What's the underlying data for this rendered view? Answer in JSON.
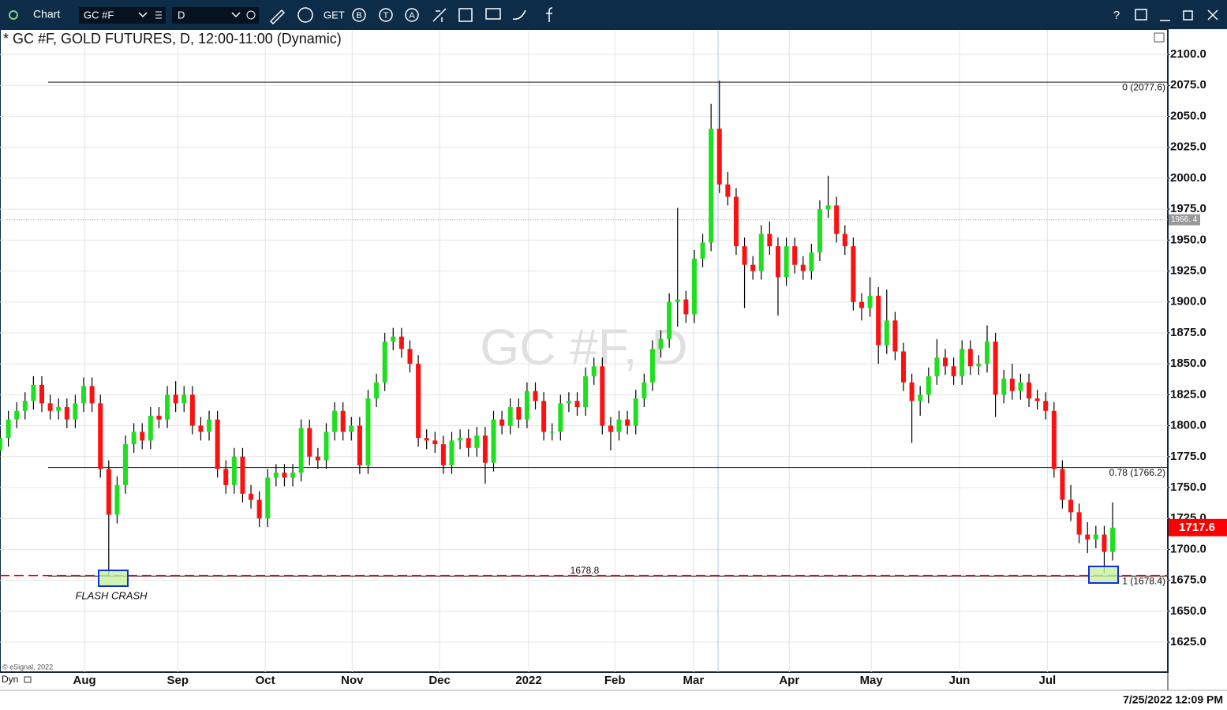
{
  "toolbar": {
    "app": "Chart",
    "symbol": "GC #F",
    "interval": "D",
    "get": "GET",
    "b": "B",
    "t": "T",
    "a": "A",
    "help": "?"
  },
  "chart_data": {
    "type": "candlestick",
    "title": "* GC #F, GOLD FUTURES, D, 12:00-11:00 (Dynamic)",
    "watermark": "GC #F, D",
    "x": [
      0,
      2,
      4,
      6,
      8,
      10,
      12,
      14,
      16,
      18,
      20,
      22,
      24,
      26,
      28,
      30,
      32,
      34,
      36,
      38,
      40,
      42,
      44,
      46,
      48,
      50,
      52,
      54,
      56,
      58,
      60,
      62,
      64,
      66,
      68,
      70,
      72,
      74,
      76,
      78,
      80,
      82,
      84,
      86,
      88,
      90,
      92,
      94,
      96,
      98,
      100,
      102,
      104,
      106,
      108,
      110,
      112,
      114,
      116,
      118,
      120,
      122,
      124,
      126,
      128,
      130,
      132,
      134,
      136,
      138,
      140,
      142,
      144,
      146,
      148,
      150,
      152,
      154,
      156,
      158,
      160,
      162,
      164,
      166,
      168,
      170,
      172,
      174,
      176,
      178,
      180,
      182,
      184,
      186,
      188,
      190,
      192,
      194,
      196,
      198,
      200,
      202,
      204,
      206,
      208,
      210,
      212,
      214,
      216,
      218,
      220,
      222,
      224,
      226,
      228,
      230,
      232,
      234,
      236,
      238,
      240,
      242,
      244,
      246,
      248,
      250,
      252,
      254,
      256,
      258,
      260,
      262,
      264,
      266
    ],
    "open": [
      1780,
      1790,
      1805,
      1812,
      1820,
      1833,
      1818,
      1812,
      1815,
      1805,
      1818,
      1832,
      1818,
      1765,
      1728,
      1752,
      1785,
      1795,
      1788,
      1808,
      1805,
      1825,
      1818,
      1825,
      1800,
      1795,
      1805,
      1765,
      1752,
      1775,
      1745,
      1740,
      1725,
      1758,
      1762,
      1758,
      1762,
      1798,
      1775,
      1772,
      1795,
      1812,
      1795,
      1800,
      1768,
      1822,
      1835,
      1868,
      1872,
      1862,
      1850,
      1790,
      1788,
      1785,
      1768,
      1788,
      1790,
      1782,
      1792,
      1770,
      1805,
      1800,
      1815,
      1805,
      1828,
      1820,
      1795,
      1795,
      1818,
      1820,
      1815,
      1840,
      1848,
      1800,
      1795,
      1805,
      1800,
      1822,
      1835,
      1862,
      1870,
      1900,
      1902,
      1890,
      1935,
      1948,
      2040,
      1995,
      1985,
      1945,
      1930,
      1925,
      1955,
      1945,
      1920,
      1945,
      1930,
      1925,
      1940,
      1975,
      1978,
      1955,
      1945,
      1900,
      1895,
      1905,
      1865,
      1885,
      1860,
      1835,
      1820,
      1825,
      1840,
      1855,
      1848,
      1840,
      1862,
      1848,
      1850,
      1868,
      1825,
      1838,
      1828,
      1835,
      1822,
      1820,
      1812,
      1765,
      1740,
      1730,
      1712,
      1708,
      1712,
      1698
    ],
    "high": [
      1797,
      1812,
      1819,
      1827,
      1840,
      1840,
      1825,
      1822,
      1822,
      1825,
      1839,
      1839,
      1825,
      1772,
      1759,
      1792,
      1802,
      1802,
      1815,
      1815,
      1832,
      1836,
      1832,
      1832,
      1807,
      1812,
      1812,
      1772,
      1782,
      1782,
      1752,
      1747,
      1765,
      1769,
      1769,
      1769,
      1805,
      1805,
      1782,
      1802,
      1819,
      1819,
      1807,
      1807,
      1829,
      1842,
      1875,
      1879,
      1879,
      1869,
      1857,
      1797,
      1795,
      1792,
      1795,
      1797,
      1797,
      1799,
      1799,
      1812,
      1812,
      1822,
      1822,
      1835,
      1835,
      1827,
      1802,
      1825,
      1827,
      1827,
      1847,
      1855,
      1855,
      1807,
      1812,
      1812,
      1829,
      1842,
      1869,
      1877,
      1907,
      1976,
      1909,
      1942,
      1955,
      2060,
      2078.8,
      2005,
      1992,
      1952,
      1937,
      1962,
      1965,
      1952,
      1952,
      1952,
      1937,
      1947,
      1982,
      2002,
      1985,
      1962,
      1952,
      1907,
      1920,
      1912,
      1910,
      1892,
      1867,
      1842,
      1832,
      1847,
      1870,
      1862,
      1855,
      1869,
      1869,
      1857,
      1881,
      1875,
      1845,
      1850,
      1842,
      1842,
      1829,
      1827,
      1819,
      1772,
      1752,
      1737,
      1722,
      1719,
      1719,
      1738
    ],
    "low": [
      1773,
      1783,
      1798,
      1805,
      1813,
      1811,
      1805,
      1805,
      1798,
      1798,
      1811,
      1811,
      1758,
      1678.8,
      1721,
      1745,
      1778,
      1781,
      1781,
      1798,
      1798,
      1811,
      1811,
      1793,
      1788,
      1788,
      1758,
      1745,
      1745,
      1738,
      1733,
      1718,
      1718,
      1751,
      1751,
      1751,
      1755,
      1768,
      1765,
      1765,
      1788,
      1788,
      1788,
      1761,
      1761,
      1815,
      1828,
      1861,
      1855,
      1843,
      1783,
      1781,
      1778,
      1761,
      1761,
      1781,
      1775,
      1775,
      1753,
      1763,
      1793,
      1793,
      1798,
      1798,
      1813,
      1788,
      1788,
      1788,
      1811,
      1808,
      1808,
      1833,
      1793,
      1780,
      1788,
      1793,
      1793,
      1815,
      1828,
      1855,
      1863,
      1880,
      1883,
      1883,
      1928,
      1941,
      1988,
      1978,
      1938,
      1895,
      1918,
      1918,
      1938,
      1889,
      1913,
      1923,
      1918,
      1918,
      1933,
      1968,
      1948,
      1938,
      1893,
      1885,
      1888,
      1850,
      1858,
      1853,
      1828,
      1786,
      1808,
      1818,
      1833,
      1841,
      1833,
      1833,
      1841,
      1841,
      1843,
      1807,
      1818,
      1821,
      1821,
      1815,
      1813,
      1805,
      1758,
      1733,
      1723,
      1705,
      1697,
      1701,
      1680.8,
      1691
    ],
    "close": [
      1790,
      1805,
      1812,
      1820,
      1833,
      1818,
      1812,
      1815,
      1805,
      1818,
      1832,
      1818,
      1765,
      1728,
      1752,
      1785,
      1795,
      1788,
      1808,
      1805,
      1825,
      1818,
      1825,
      1800,
      1795,
      1805,
      1765,
      1752,
      1775,
      1745,
      1740,
      1725,
      1758,
      1762,
      1758,
      1762,
      1798,
      1775,
      1772,
      1795,
      1812,
      1795,
      1800,
      1768,
      1822,
      1835,
      1868,
      1872,
      1862,
      1850,
      1790,
      1788,
      1785,
      1768,
      1788,
      1790,
      1782,
      1792,
      1770,
      1805,
      1800,
      1815,
      1805,
      1828,
      1820,
      1795,
      1795,
      1818,
      1820,
      1815,
      1840,
      1848,
      1800,
      1795,
      1805,
      1800,
      1822,
      1835,
      1862,
      1870,
      1900,
      1902,
      1890,
      1935,
      1948,
      2040,
      1995,
      1985,
      1945,
      1930,
      1925,
      1955,
      1945,
      1920,
      1945,
      1930,
      1925,
      1940,
      1975,
      1978,
      1955,
      1945,
      1900,
      1895,
      1905,
      1865,
      1885,
      1860,
      1835,
      1820,
      1825,
      1840,
      1855,
      1848,
      1840,
      1862,
      1848,
      1850,
      1868,
      1825,
      1838,
      1828,
      1835,
      1822,
      1820,
      1812,
      1765,
      1740,
      1730,
      1712,
      1708,
      1712,
      1698,
      1717.6
    ],
    "colors": {
      "up": "#1fe01f",
      "down": "#ff1010",
      "wick": "#000000"
    },
    "xlim": [
      0,
      279.2
    ],
    "xticks": [
      {
        "value": 20.2,
        "label": "Aug"
      },
      {
        "value": 42.5,
        "label": "Sep"
      },
      {
        "value": 63.4,
        "label": "Oct"
      },
      {
        "value": 84.2,
        "label": "Nov"
      },
      {
        "value": 105.1,
        "label": "Dec"
      },
      {
        "value": 126.4,
        "label": "2022"
      },
      {
        "value": 147,
        "label": "Feb"
      },
      {
        "value": 165.8,
        "label": "Mar"
      },
      {
        "value": 188.7,
        "label": "Apr"
      },
      {
        "value": 208.3,
        "label": "May"
      },
      {
        "value": 229.4,
        "label": "Jun"
      },
      {
        "value": 250.4,
        "label": "Jul"
      }
    ],
    "ylim": [
      1600.8,
      2119.8
    ],
    "yticks": [
      {
        "value": 1625,
        "label": "1625.0"
      },
      {
        "value": 1650,
        "label": "1650.0"
      },
      {
        "value": 1675,
        "label": "1675.0"
      },
      {
        "value": 1700,
        "label": "1700.0"
      },
      {
        "value": 1725,
        "label": "1725.0"
      },
      {
        "value": 1750,
        "label": "1750.0"
      },
      {
        "value": 1775,
        "label": "1775.0"
      },
      {
        "value": 1800,
        "label": "1800.0"
      },
      {
        "value": 1825,
        "label": "1825.0"
      },
      {
        "value": 1850,
        "label": "1850.0"
      },
      {
        "value": 1875,
        "label": "1875.0"
      },
      {
        "value": 1900,
        "label": "1900.0"
      },
      {
        "value": 1925,
        "label": "1925.0"
      },
      {
        "value": 1950,
        "label": "1950.0"
      },
      {
        "value": 1975,
        "label": "1975.0"
      },
      {
        "value": 2000,
        "label": "2000.0"
      },
      {
        "value": 2025,
        "label": "2025.0"
      },
      {
        "value": 2050,
        "label": "2050.0"
      },
      {
        "value": 2075,
        "label": "2075.0"
      },
      {
        "value": 2100,
        "label": "2100.0"
      }
    ],
    "grid": true,
    "fib_levels": [
      {
        "value": 2077.6,
        "label": "0 (2077.6)"
      },
      {
        "value": 1766.2,
        "label": "0.78 (1766.2)"
      },
      {
        "value": 1678.4,
        "label": "1 (1678.4)"
      }
    ],
    "support_line": {
      "value": 1678.8,
      "color": "#ff0000"
    },
    "cursor_price": {
      "value": 1966.4,
      "label": "1966. 4"
    },
    "last_price": 1717.6,
    "annotation": "FLASH CRASH"
  },
  "footer": {
    "copyright": "© eSignal, 2022",
    "mode": "Dyn",
    "timestamp": "7/25/2022 12:09 PM"
  }
}
